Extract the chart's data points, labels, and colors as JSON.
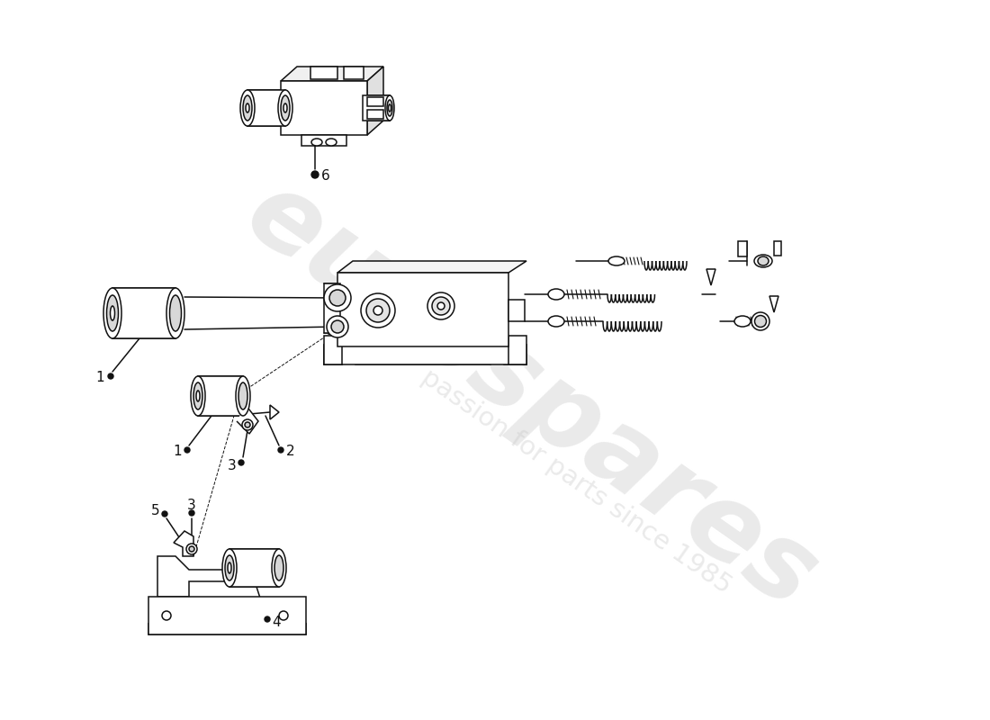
{
  "bg": "#ffffff",
  "lc": "#111111",
  "lw": 1.1,
  "wm1": "eurospares",
  "wm2": "passion for parts since 1985",
  "wmc": "#c8c8c8",
  "wma": 0.38
}
